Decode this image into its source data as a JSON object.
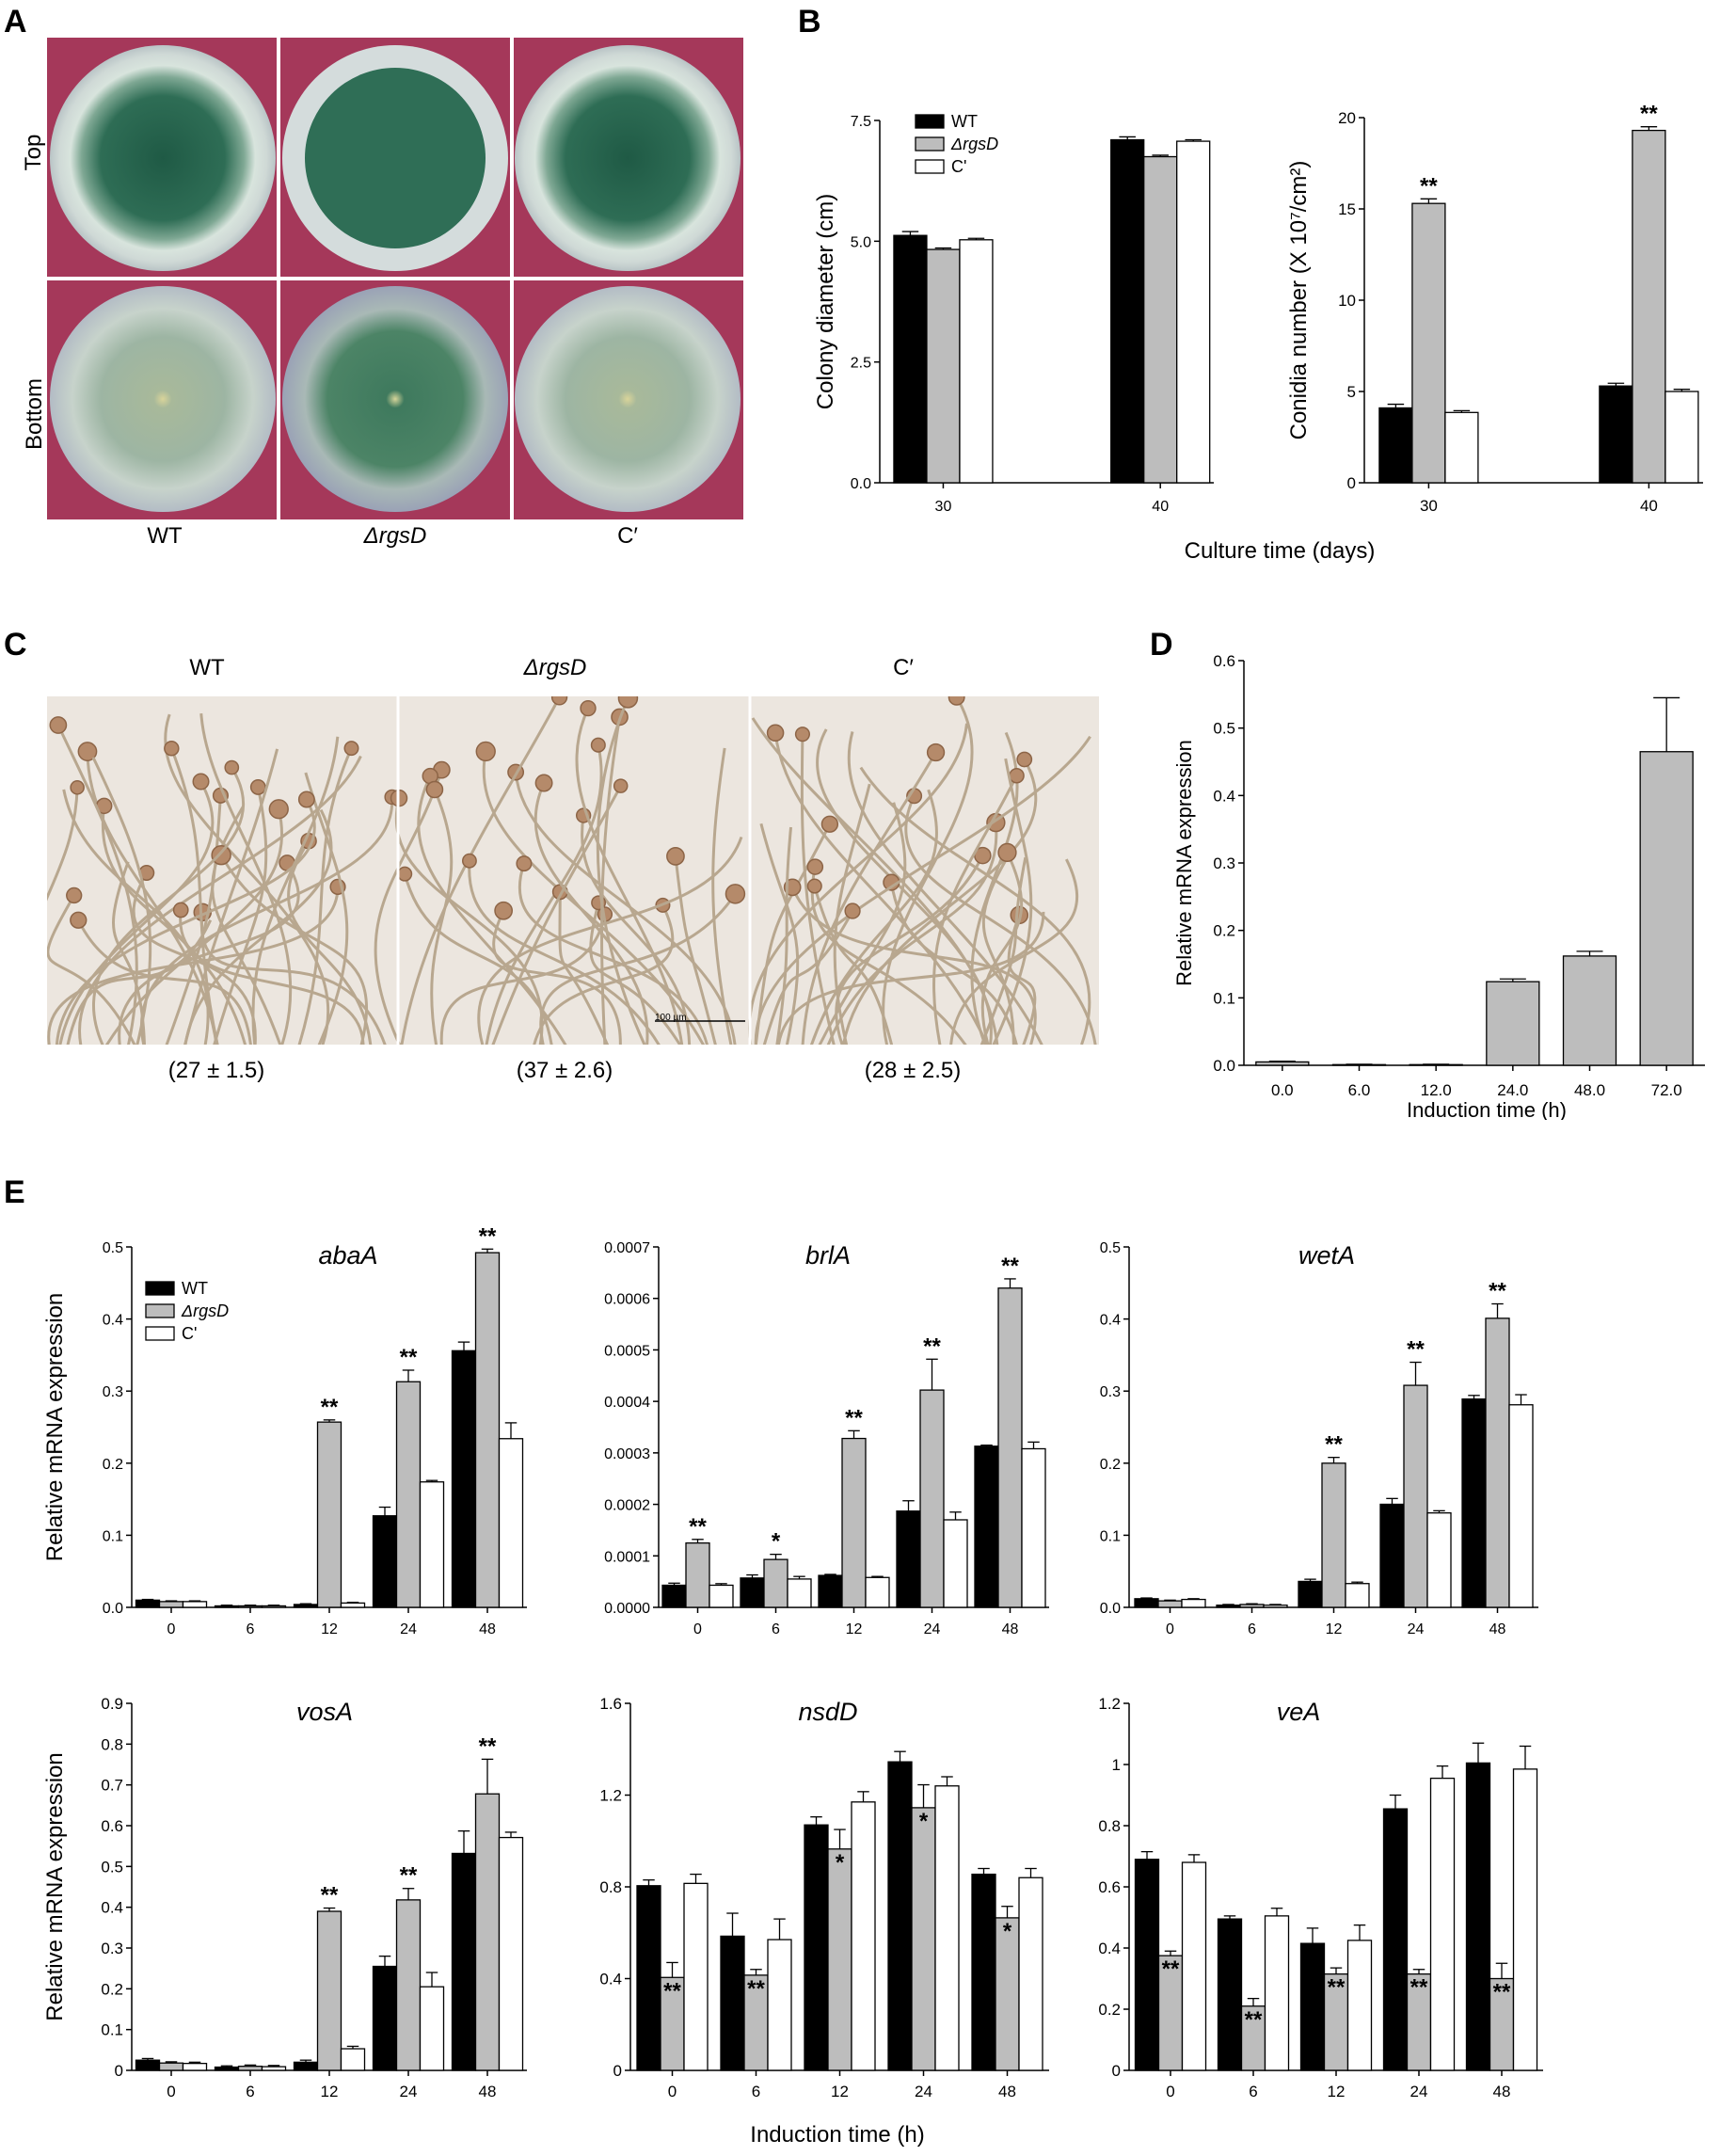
{
  "panel_labels": {
    "A": "A",
    "B": "B",
    "C": "C",
    "D": "D",
    "E": "E"
  },
  "panel_a": {
    "row_labels": [
      "Top",
      "Bottom"
    ],
    "strain_labels": [
      "WT",
      "ΔrgsD",
      "C′"
    ]
  },
  "panel_b_xlabel": "Culture time (days)",
  "panel_c": {
    "strain_labels": [
      "WT",
      "ΔrgsD",
      "C′"
    ],
    "counts": [
      "(27 ± 1.5)",
      "(37 ± 2.6)",
      "(28 ± 2.5)"
    ],
    "scale_bar": "100 µm"
  },
  "panel_e_xlabel": "Induction time (h)",
  "legend_labels": [
    "WT",
    "ΔrgsD",
    "C'"
  ],
  "colors": {
    "wt": "#000000",
    "mutant": "#bdbdbd",
    "comp": "#ffffff",
    "dish_bg": "#a5385a",
    "mycelium": "#2f6e56"
  },
  "chart_data": [
    {
      "id": "B1",
      "type": "bar",
      "ylabel": "Colony diameter (cm)",
      "categories": [
        "30",
        "40"
      ],
      "ylim": [
        0,
        7.5
      ],
      "yticks": [
        "0.0",
        "2.5",
        "5.0",
        "7.5"
      ],
      "series": [
        {
          "name": "WT",
          "values": [
            5.12,
            7.1
          ],
          "errors": [
            0.08,
            0.06
          ]
        },
        {
          "name": "ΔrgsD",
          "values": [
            4.83,
            6.75
          ],
          "errors": [
            0.03,
            0.03
          ]
        },
        {
          "name": "C'",
          "values": [
            5.03,
            7.07
          ],
          "errors": [
            0.03,
            0.03
          ]
        }
      ],
      "stars": [
        "",
        ""
      ]
    },
    {
      "id": "B2",
      "type": "bar",
      "ylabel": "Conidia number (X 10⁷/cm²)",
      "categories": [
        "30",
        "40"
      ],
      "ylim": [
        0,
        20
      ],
      "yticks": [
        "0",
        "5",
        "10",
        "15",
        "20"
      ],
      "series": [
        {
          "name": "WT",
          "values": [
            4.1,
            5.3
          ],
          "errors": [
            0.2,
            0.15
          ]
        },
        {
          "name": "ΔrgsD",
          "values": [
            15.3,
            19.3
          ],
          "errors": [
            0.25,
            0.2
          ]
        },
        {
          "name": "C'",
          "values": [
            3.85,
            5.0
          ],
          "errors": [
            0.1,
            0.12
          ]
        }
      ],
      "stars": [
        "**",
        "**"
      ]
    },
    {
      "id": "D",
      "type": "bar",
      "ylabel": "Relative mRNA expression",
      "xlabel": "Induction time (h)",
      "categories": [
        "0.0",
        "6.0",
        "12.0",
        "24.0",
        "48.0",
        "72.0"
      ],
      "ylim": [
        0,
        0.6
      ],
      "yticks": [
        "0.0",
        "0.1",
        "0.2",
        "0.3",
        "0.4",
        "0.5",
        "0.6"
      ],
      "values": [
        0.005,
        0.001,
        0.001,
        0.124,
        0.162,
        0.465
      ],
      "errors": [
        0.001,
        0.0005,
        0.0005,
        0.004,
        0.007,
        0.08
      ]
    },
    {
      "id": "E1",
      "type": "bar",
      "title": "abaA",
      "ylabel": "Relative mRNA expression",
      "categories": [
        "0",
        "6",
        "12",
        "24",
        "48"
      ],
      "ylim": [
        0,
        0.5
      ],
      "yticks": [
        "0.0",
        "0.1",
        "0.2",
        "0.3",
        "0.4",
        "0.5"
      ],
      "series": [
        {
          "name": "WT",
          "values": [
            0.01,
            0.002,
            0.004,
            0.127,
            0.356
          ],
          "errors": [
            0.001,
            0.001,
            0.001,
            0.012,
            0.012
          ]
        },
        {
          "name": "ΔrgsD",
          "values": [
            0.008,
            0.002,
            0.257,
            0.313,
            0.492
          ],
          "errors": [
            0.001,
            0.001,
            0.003,
            0.016,
            0.005
          ]
        },
        {
          "name": "C'",
          "values": [
            0.008,
            0.002,
            0.006,
            0.174,
            0.234
          ],
          "errors": [
            0.001,
            0.001,
            0.001,
            0.002,
            0.022
          ]
        }
      ],
      "stars": [
        "",
        "",
        "**",
        "**",
        "**"
      ]
    },
    {
      "id": "E2",
      "type": "bar",
      "title": "brlA",
      "categories": [
        "0",
        "6",
        "12",
        "24",
        "48"
      ],
      "ylim": [
        0,
        0.0007
      ],
      "yticks": [
        "0.0000",
        "0.0001",
        "0.0002",
        "0.0003",
        "0.0004",
        "0.0005",
        "0.0006",
        "0.0007"
      ],
      "series": [
        {
          "name": "WT",
          "values": [
            4.3e-05,
            5.7e-05,
            6.2e-05,
            0.000187,
            0.000313
          ],
          "errors": [
            4e-06,
            6e-06,
            2e-06,
            2e-05,
            2e-06
          ]
        },
        {
          "name": "ΔrgsD",
          "values": [
            0.000125,
            9.3e-05,
            0.000328,
            0.000422,
            0.00062
          ],
          "errors": [
            7e-06,
            1e-05,
            1.5e-05,
            6e-05,
            1.8e-05
          ]
        },
        {
          "name": "C'",
          "values": [
            4.3e-05,
            5.5e-05,
            5.8e-05,
            0.00017,
            0.000308
          ],
          "errors": [
            3e-06,
            5e-06,
            2e-06,
            1.5e-05,
            1.3e-05
          ]
        }
      ],
      "stars": [
        "**",
        "*",
        "**",
        "**",
        "**"
      ]
    },
    {
      "id": "E3",
      "type": "bar",
      "title": "wetA",
      "categories": [
        "0",
        "6",
        "12",
        "24",
        "48"
      ],
      "ylim": [
        0,
        0.5
      ],
      "yticks": [
        "0.0",
        "0.1",
        "0.2",
        "0.3",
        "0.4",
        "0.5"
      ],
      "series": [
        {
          "name": "WT",
          "values": [
            0.012,
            0.003,
            0.036,
            0.143,
            0.289
          ],
          "errors": [
            0.001,
            0.001,
            0.003,
            0.008,
            0.005
          ]
        },
        {
          "name": "ΔrgsD",
          "values": [
            0.009,
            0.004,
            0.2,
            0.308,
            0.401
          ],
          "errors": [
            0.001,
            0.001,
            0.008,
            0.032,
            0.02
          ]
        },
        {
          "name": "C'",
          "values": [
            0.011,
            0.003,
            0.033,
            0.131,
            0.281
          ],
          "errors": [
            0.001,
            0.001,
            0.002,
            0.003,
            0.014
          ]
        }
      ],
      "stars": [
        "",
        "",
        "**",
        "**",
        "**"
      ]
    },
    {
      "id": "E4",
      "type": "bar",
      "title": "vosA",
      "ylabel": "Relative mRNA expression",
      "categories": [
        "0",
        "6",
        "12",
        "24",
        "48"
      ],
      "ylim": [
        0,
        0.9
      ],
      "yticks": [
        "0",
        "0.1",
        "0.2",
        "0.3",
        "0.4",
        "0.5",
        "0.6",
        "0.7",
        "0.8",
        "0.9"
      ],
      "series": [
        {
          "name": "WT",
          "values": [
            0.025,
            0.008,
            0.02,
            0.255,
            0.532
          ],
          "errors": [
            0.004,
            0.003,
            0.005,
            0.025,
            0.055
          ]
        },
        {
          "name": "ΔrgsD",
          "values": [
            0.018,
            0.01,
            0.39,
            0.418,
            0.678
          ],
          "errors": [
            0.003,
            0.003,
            0.008,
            0.028,
            0.085
          ]
        },
        {
          "name": "C'",
          "values": [
            0.017,
            0.009,
            0.053,
            0.205,
            0.571
          ],
          "errors": [
            0.003,
            0.003,
            0.006,
            0.035,
            0.013
          ]
        }
      ],
      "stars": [
        "",
        "",
        "**",
        "**",
        "**"
      ]
    },
    {
      "id": "E5",
      "type": "bar",
      "title": "nsdD",
      "categories": [
        "0",
        "6",
        "12",
        "24",
        "48"
      ],
      "ylim": [
        0,
        1.6
      ],
      "yticks": [
        "0",
        "0.4",
        "0.8",
        "1.2",
        "1.6"
      ],
      "series": [
        {
          "name": "WT",
          "values": [
            0.805,
            0.585,
            1.07,
            1.345,
            0.855
          ],
          "errors": [
            0.025,
            0.1,
            0.035,
            0.045,
            0.025
          ]
        },
        {
          "name": "ΔrgsD",
          "values": [
            0.405,
            0.415,
            0.965,
            1.145,
            0.665
          ],
          "errors": [
            0.065,
            0.025,
            0.085,
            0.1,
            0.05
          ]
        },
        {
          "name": "C'",
          "values": [
            0.815,
            0.57,
            1.17,
            1.24,
            0.84
          ],
          "errors": [
            0.04,
            0.09,
            0.045,
            0.04,
            0.04
          ]
        }
      ],
      "stars": [
        "**",
        "**",
        "*",
        "*",
        "*"
      ]
    },
    {
      "id": "E6",
      "type": "bar",
      "title": "veA",
      "categories": [
        "0",
        "6",
        "12",
        "24",
        "48"
      ],
      "ylim": [
        0,
        1.2
      ],
      "yticks": [
        "0",
        "0.2",
        "0.4",
        "0.6",
        "0.8",
        "1",
        "1.2"
      ],
      "series": [
        {
          "name": "WT",
          "values": [
            0.69,
            0.495,
            0.415,
            0.855,
            1.005
          ],
          "errors": [
            0.025,
            0.01,
            0.05,
            0.045,
            0.065
          ]
        },
        {
          "name": "ΔrgsD",
          "values": [
            0.375,
            0.21,
            0.315,
            0.315,
            0.3
          ],
          "errors": [
            0.015,
            0.025,
            0.02,
            0.015,
            0.05
          ]
        },
        {
          "name": "C'",
          "values": [
            0.68,
            0.505,
            0.425,
            0.955,
            0.985
          ],
          "errors": [
            0.025,
            0.025,
            0.05,
            0.04,
            0.075
          ]
        }
      ],
      "stars": [
        "**",
        "**",
        "**",
        "**",
        "**"
      ]
    }
  ]
}
